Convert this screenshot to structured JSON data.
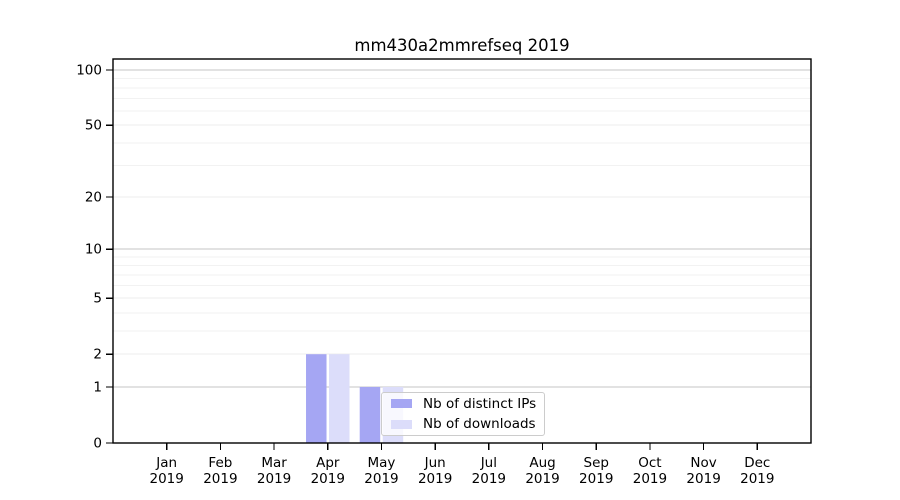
{
  "chart_data": {
    "type": "bar",
    "title": "mm430a2mmrefseq 2019",
    "categories": [
      "Jan",
      "Feb",
      "Mar",
      "Apr",
      "May",
      "Jun",
      "Jul",
      "Aug",
      "Sep",
      "Oct",
      "Nov",
      "Dec"
    ],
    "year_label": "2019",
    "series": [
      {
        "name": "Nb of distinct IPs",
        "color": "#a5a6f3",
        "values": [
          0,
          0,
          0,
          2,
          1,
          0,
          0,
          0,
          0,
          0,
          0,
          0
        ]
      },
      {
        "name": "Nb of downloads",
        "color": "#dcddfa",
        "values": [
          0,
          0,
          0,
          2,
          1,
          0,
          0,
          0,
          0,
          0,
          0,
          0
        ]
      }
    ],
    "xlabel": "",
    "ylabel": "",
    "yscale": "symlog-log1p",
    "yticks": [
      0,
      1,
      2,
      5,
      10,
      20,
      50,
      100
    ],
    "ylim": [
      0,
      115
    ],
    "gridlines": {
      "major": [
        1,
        10,
        100
      ],
      "mid": [
        2,
        5,
        20,
        50
      ],
      "minor": [
        3,
        4,
        6,
        7,
        8,
        9,
        30,
        40,
        60,
        70,
        80,
        90
      ]
    },
    "grid": "horizontal",
    "legend_position": "inside-bottom-center",
    "colors": {
      "axis": "#000000",
      "tick_label": "#000000",
      "title": "#000000",
      "major_grid": "#c6c6c6",
      "mid_grid": "#ececec",
      "minor_grid": "#f2f2f2",
      "background": "#ffffff",
      "legend_border": "#cccccc"
    }
  }
}
